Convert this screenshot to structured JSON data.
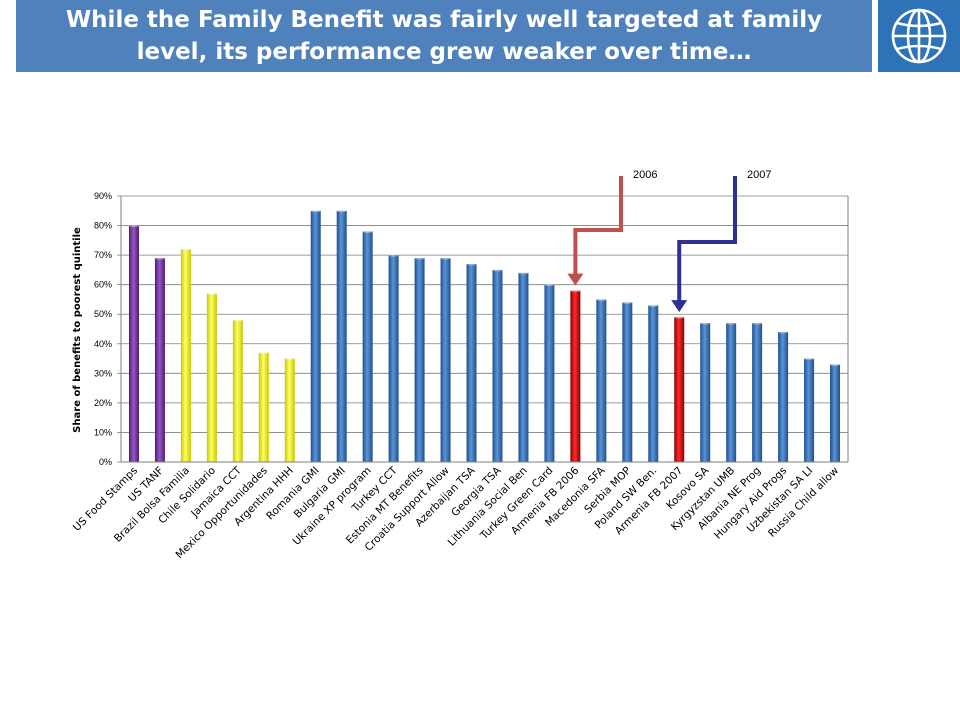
{
  "slide": {
    "title_line1": "While the Family Benefit was fairly well targeted at family",
    "title_line2": "level, its performance grew weaker over time…",
    "logo_icon": "globe-icon"
  },
  "colors": {
    "banner": "#4f81bd",
    "logo_bg": "#2e73b8",
    "purple": "#7030a0",
    "yellow": "#ffff00",
    "blue": "#2f69b5",
    "red": "#d00000",
    "arrow_2006": "#c0504d",
    "arrow_2007": "#2e3192"
  },
  "chart_data": {
    "type": "bar",
    "ylabel": "Share of benefits to poorest quintile",
    "ylim": [
      0,
      90
    ],
    "yticks": [
      "0%",
      "10%",
      "20%",
      "30%",
      "40%",
      "50%",
      "60%",
      "70%",
      "80%",
      "90%"
    ],
    "grid": true,
    "categories": [
      "US Food Stamps",
      "US TANF",
      "Brazil Bolsa Familia",
      "Chile Solidario",
      "Jamaica CCT",
      "Mexico Opportunidades",
      "Argentina HHH",
      "Romania GMI",
      "Bulgaria GMI",
      "Ukraine XP program",
      "Turkey CCT",
      "Estonia MT Benefits",
      "Croatia Support Allow",
      "Azerbaijan TSA",
      "Georgia TSA",
      "Lithuania Social Ben",
      "Turkey Green Card",
      "Armenia FB 2006",
      "Macedonia SFA",
      "Serbia MOP",
      "Poland SW Ben.",
      "Armenia FB 2007",
      "Kosovo SA",
      "Kyrgyzstan UMB",
      "Albania NE Prog",
      "Hungary Aid Progs",
      "Uzbekistan SA LI",
      "Russia Child allow"
    ],
    "values": [
      80,
      69,
      72,
      57,
      48,
      37,
      35,
      85,
      85,
      78,
      70,
      69,
      69,
      67,
      65,
      64,
      60,
      58,
      55,
      54,
      53,
      49,
      47,
      47,
      47,
      44,
      35,
      33
    ],
    "bar_colors": [
      "purple",
      "purple",
      "yellow",
      "yellow",
      "yellow",
      "yellow",
      "yellow",
      "blue",
      "blue",
      "blue",
      "blue",
      "blue",
      "blue",
      "blue",
      "blue",
      "blue",
      "blue",
      "red",
      "blue",
      "blue",
      "blue",
      "red",
      "blue",
      "blue",
      "blue",
      "blue",
      "blue",
      "blue"
    ],
    "annotations": [
      {
        "text": "2006",
        "target": "Armenia FB 2006",
        "color": "arrow_2006"
      },
      {
        "text": "2007",
        "target": "Armenia FB 2007",
        "color": "arrow_2007"
      }
    ]
  }
}
